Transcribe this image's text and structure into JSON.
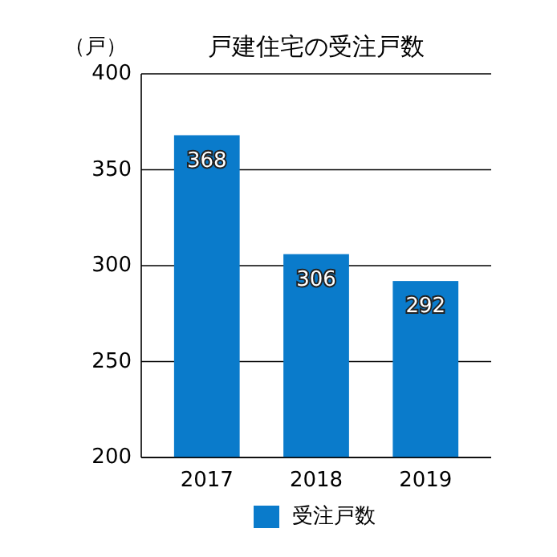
{
  "chart_data": {
    "type": "bar",
    "title": "戸建住宅の受注戸数",
    "ylabel": "（戸）",
    "categories": [
      "2017",
      "2018",
      "2019"
    ],
    "series": [
      {
        "name": "受注戸数",
        "color": "#0a7bcb",
        "values": [
          368,
          306,
          292
        ]
      }
    ],
    "ylim": [
      200,
      400
    ],
    "yticks": [
      200,
      250,
      300,
      350,
      400
    ],
    "grid": "y",
    "legend": "bottom",
    "data_labels": true
  }
}
